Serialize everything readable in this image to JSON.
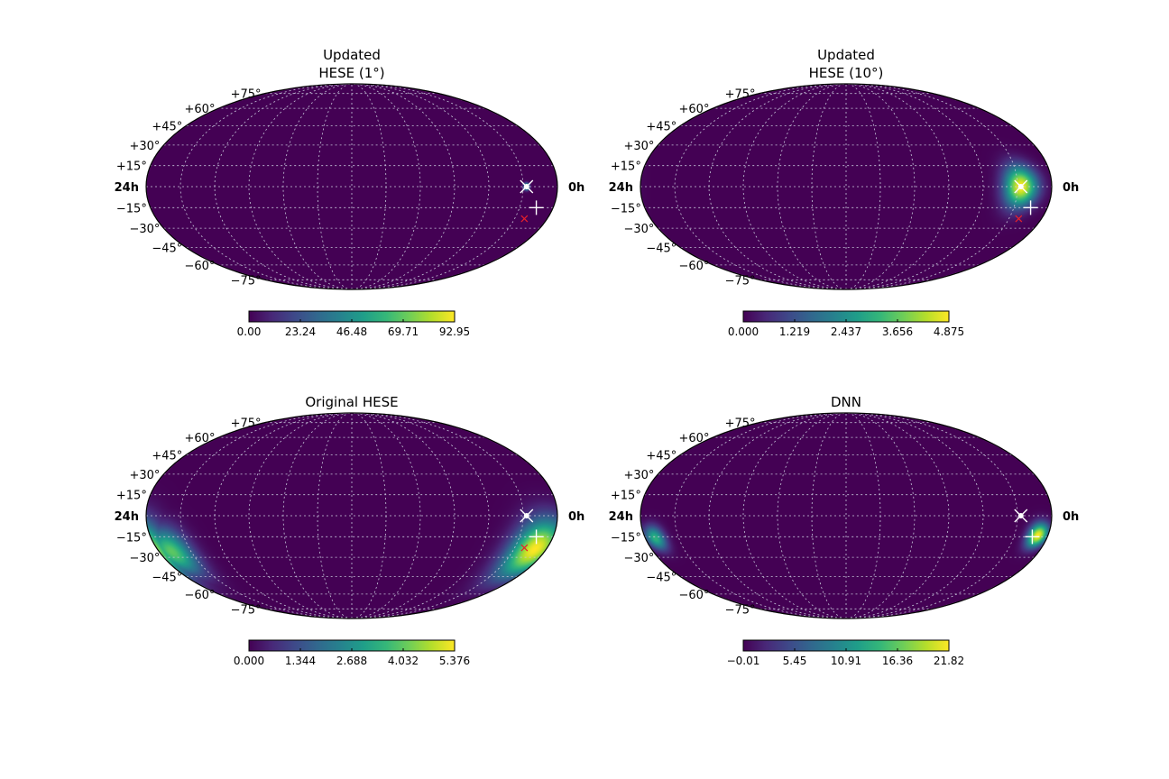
{
  "colormap": {
    "name": "viridis",
    "stops": [
      "#440154",
      "#482878",
      "#3e4989",
      "#31688e",
      "#26828e",
      "#1f9e89",
      "#35b779",
      "#6ece58",
      "#b5de2b",
      "#fde725"
    ]
  },
  "grid_color": "#c8c8dc",
  "lat_labels": [
    "+75°",
    "+60°",
    "+45°",
    "+30°",
    "+15°",
    "−15°",
    "−30°",
    "−45°",
    "−60°",
    "−75°"
  ],
  "hour_labels": {
    "left": "24h",
    "right": "0h"
  },
  "marker_colors": {
    "white": "#ffffff",
    "red": "#e8202a"
  },
  "chart_data": [
    {
      "type": "heatmap",
      "projection": "mollweide",
      "title_lines": [
        "Updated",
        "HESE (1°)"
      ],
      "colorbar": {
        "min": 0.0,
        "max": 92.95,
        "ticks": [
          "0.00",
          "23.24",
          "46.48",
          "69.71",
          "92.95"
        ]
      },
      "hotspots": [
        {
          "ra_h": 1.8,
          "dec": 0,
          "sigma": 1.6,
          "value": 92.95
        }
      ],
      "markers": [
        {
          "kind": "x",
          "ra_h": 1.8,
          "dec": 0
        },
        {
          "kind": "plus",
          "ra_h": 1.0,
          "dec": -15
        },
        {
          "kind": "red-x",
          "ra_h": 1.4,
          "dec": -23
        }
      ]
    },
    {
      "type": "heatmap",
      "projection": "mollweide",
      "title_lines": [
        "Updated",
        "HESE (10°)"
      ],
      "colorbar": {
        "min": 0.0,
        "max": 4.875,
        "ticks": [
          "0.000",
          "1.219",
          "2.437",
          "3.656",
          "4.875"
        ]
      },
      "hotspots": [
        {
          "ra_h": 1.8,
          "dec": 0,
          "sigma": 10,
          "value": 4.875
        }
      ],
      "markers": [
        {
          "kind": "x",
          "ra_h": 1.8,
          "dec": 0
        },
        {
          "kind": "plus",
          "ra_h": 1.0,
          "dec": -15
        },
        {
          "kind": "red-x",
          "ra_h": 1.4,
          "dec": -23
        }
      ]
    },
    {
      "type": "heatmap",
      "projection": "mollweide",
      "title_lines": [
        "Original HESE"
      ],
      "colorbar": {
        "min": 0.0,
        "max": 5.376,
        "ticks": [
          "0.000",
          "1.344",
          "2.688",
          "4.032",
          "5.376"
        ]
      },
      "hotspots": [
        {
          "ra_h": 0.7,
          "dec": -24,
          "sigma": 15,
          "value": 5.376
        },
        {
          "ra_h": 23.2,
          "dec": -26,
          "sigma": 12,
          "value": 4.0
        }
      ],
      "markers": [
        {
          "kind": "x",
          "ra_h": 1.8,
          "dec": 0
        },
        {
          "kind": "plus",
          "ra_h": 1.0,
          "dec": -15
        },
        {
          "kind": "red-x",
          "ra_h": 1.4,
          "dec": -23
        }
      ]
    },
    {
      "type": "heatmap",
      "projection": "mollweide",
      "title_lines": [
        "DNN"
      ],
      "colorbar": {
        "min": -0.01,
        "max": 21.82,
        "ticks": [
          "−0.01",
          "5.45",
          "10.91",
          "16.36",
          "21.82"
        ]
      },
      "hotspots": [
        {
          "ra_h": 0.6,
          "dec": -14,
          "sigma": 6,
          "value": 21.82
        },
        {
          "ra_h": 23.4,
          "dec": -16,
          "sigma": 6,
          "value": 14.0
        }
      ],
      "markers": [
        {
          "kind": "x",
          "ra_h": 1.8,
          "dec": 0
        },
        {
          "kind": "plus",
          "ra_h": 0.9,
          "dec": -15
        }
      ]
    }
  ]
}
